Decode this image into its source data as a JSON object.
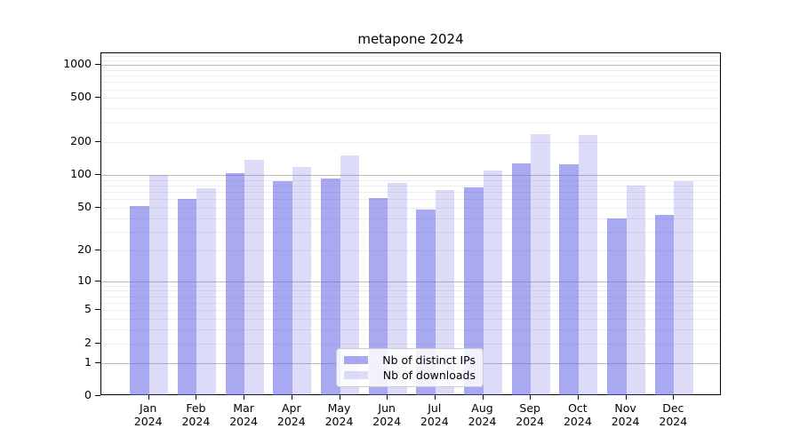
{
  "title": "metapone 2024",
  "chart_data": {
    "type": "bar",
    "title": "metapone 2024",
    "categories": [
      "Jan",
      "Feb",
      "Mar",
      "Apr",
      "May",
      "Jun",
      "Jul",
      "Aug",
      "Sep",
      "Oct",
      "Nov",
      "Dec"
    ],
    "year_label": "2024",
    "series": [
      {
        "name": "Nb of distinct IPs",
        "color": "rgba(102,102,230,0.56)",
        "values": [
          52,
          60,
          103,
          87,
          92,
          61,
          48,
          77,
          128,
          126,
          40,
          43
        ]
      },
      {
        "name": "Nb of downloads",
        "color": "rgba(102,102,230,0.23)",
        "values": [
          100,
          75,
          137,
          118,
          150,
          84,
          73,
          110,
          236,
          232,
          80,
          88
        ]
      }
    ],
    "y_ticks": [
      0,
      1,
      2,
      5,
      10,
      20,
      50,
      100,
      200,
      500,
      1000
    ],
    "y_scale": "log1p",
    "ylim": [
      0,
      1270
    ],
    "xlabel": "",
    "ylabel": "",
    "grid": "on",
    "legend_position": "lower-center",
    "major_grid_values": [
      1,
      10,
      100,
      1000
    ],
    "minor_grid_values": [
      2,
      3,
      4,
      5,
      6,
      7,
      8,
      9,
      20,
      30,
      40,
      50,
      60,
      70,
      80,
      90,
      200,
      300,
      400,
      500,
      600,
      700,
      800,
      900,
      1100,
      1200
    ]
  }
}
